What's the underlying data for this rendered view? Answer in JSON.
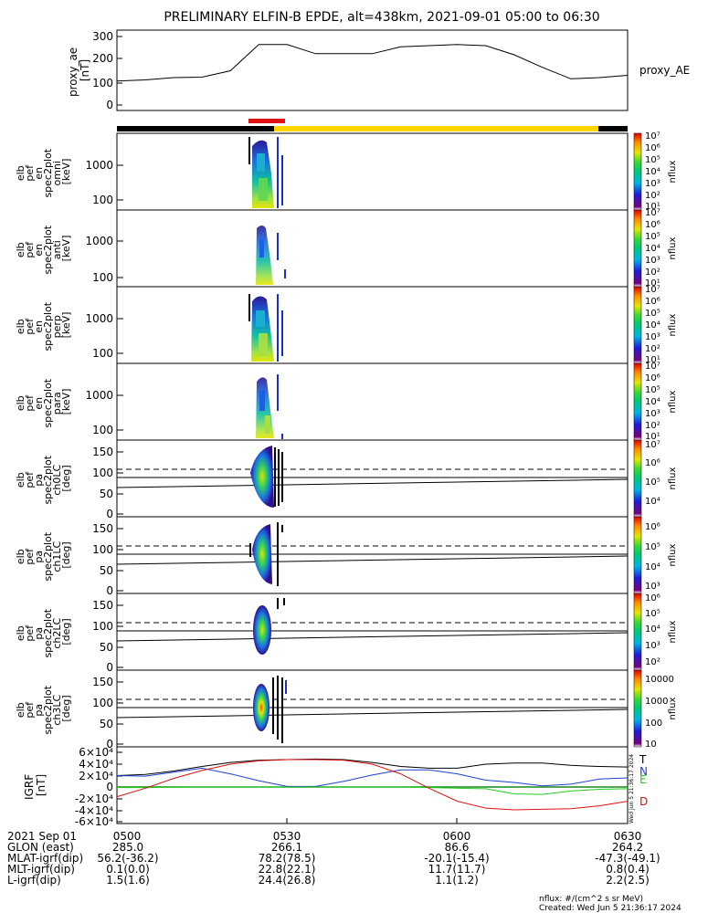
{
  "title": "PRELIMINARY ELFIN-B EPDE, alt=438km, 2021-09-01 05:00 to 06:30",
  "time_ticks": [
    "0500",
    "0530",
    "0600",
    "0630"
  ],
  "ae_panel": {
    "ylabel_lines": [
      "proxy_ae",
      "[nT]"
    ],
    "legend": "proxy_AE",
    "yticks": [
      "0",
      "100",
      "200",
      "300"
    ]
  },
  "spec_panels": [
    {
      "ylabel_lines": [
        "elb",
        "pef",
        "en",
        "spec2plot",
        "omni",
        "[keV]"
      ],
      "cbar_label": "nflux"
    },
    {
      "ylabel_lines": [
        "elb",
        "pef",
        "en",
        "spec2plot",
        "anti",
        "[keV]"
      ],
      "cbar_label": "nflux"
    },
    {
      "ylabel_lines": [
        "elb",
        "pef",
        "en",
        "spec2plot",
        "perp",
        "[keV]"
      ],
      "cbar_label": "nflux"
    },
    {
      "ylabel_lines": [
        "elb",
        "pef",
        "en",
        "spec2plot",
        "para",
        "[keV]"
      ],
      "cbar_label": "nflux"
    }
  ],
  "spec_yticks": [
    "100",
    "1000"
  ],
  "pa_panels": [
    {
      "ylabel_lines": [
        "elb",
        "pef",
        "pa",
        "spec2plot",
        "ch0LC",
        "[deg]"
      ],
      "cbar_label": "nflux"
    },
    {
      "ylabel_lines": [
        "elb",
        "pef",
        "pa",
        "spec2plot",
        "ch1LC",
        "[deg]"
      ],
      "cbar_label": "nflux"
    },
    {
      "ylabel_lines": [
        "elb",
        "pef",
        "pa",
        "spec2plot",
        "ch2LC",
        "[deg]"
      ],
      "cbar_label": "nflux"
    },
    {
      "ylabel_lines": [
        "elb",
        "pef",
        "pa",
        "spec2plot",
        "ch3LC",
        "[deg]"
      ],
      "cbar_label": "nflux"
    }
  ],
  "pa_yticks": [
    "0",
    "50",
    "100",
    "150"
  ],
  "cbar_ticks_spec": [
    "10¹",
    "10²",
    "10³",
    "10⁴",
    "10⁵",
    "10⁶",
    "10⁷"
  ],
  "cbar_ticks_pa0": [
    "10⁴",
    "10⁵",
    "10⁶",
    "10⁷"
  ],
  "cbar_ticks_pa1": [
    "10³",
    "10⁴",
    "10⁵",
    "10⁶"
  ],
  "cbar_ticks_pa2": [
    "10²",
    "10³",
    "10⁴",
    "10⁵",
    "10⁶"
  ],
  "cbar_ticks_pa3": [
    "10",
    "100",
    "1000",
    "10000"
  ],
  "bfield_panel": {
    "ylabel_lines": [
      "IGRF",
      "[nT]"
    ],
    "yticks": [
      "-6×10⁴",
      "-4×10⁴",
      "-2×10⁴",
      "0",
      "2×10⁴",
      "4×10⁴",
      "6×10⁴"
    ],
    "legend": [
      {
        "label": "T",
        "color": "#000000"
      },
      {
        "label": "N",
        "color": "#1f3fd8"
      },
      {
        "label": "E",
        "color": "#22cc22"
      },
      {
        "label": "D",
        "color": "#e01010"
      }
    ],
    "stamp": "Wed Jun  5 21:36:17 2024"
  },
  "footer": {
    "date": "2021 Sep 01",
    "rows": [
      {
        "label": "GLON (east)",
        "values": [
          "285.0",
          "266.1",
          "86.6",
          "264.2"
        ]
      },
      {
        "label": "MLAT-igrf(dip)",
        "values": [
          "56.2(-36.2)",
          "78.2(78.5)",
          "-20.1(-15.4)",
          "-47.3(-49.1)"
        ]
      },
      {
        "label": "MLT-igrf(dip)",
        "values": [
          "0.1(0.0)",
          "22.8(22.1)",
          "11.7(11.7)",
          "0.8(0.4)"
        ]
      },
      {
        "label": "L-igrf(dip)",
        "values": [
          "1.5(1.6)",
          "24.4(26.8)",
          "1.1(1.2)",
          "2.2(2.5)"
        ]
      }
    ],
    "units_note": "nflux: #/(cm^2 s sr MeV)",
    "created": "Created: Wed Jun  5 21:36:17 2024"
  },
  "colors": {
    "status_black": "#000000",
    "status_yellow": "#ffd400",
    "status_red": "#e01010"
  },
  "chart_data": [
    {
      "type": "line",
      "ylabel": "proxy_ae [nT]",
      "ylim": [
        0,
        320
      ],
      "x": [
        "0500",
        "0505",
        "0510",
        "0515",
        "0520",
        "0525",
        "0530",
        "0535",
        "0540",
        "0545",
        "0550",
        "0555",
        "0600",
        "0605",
        "0610",
        "0615",
        "0620",
        "0625",
        "0630"
      ],
      "series": [
        {
          "name": "proxy_AE",
          "values": [
            105,
            110,
            120,
            122,
            150,
            265,
            265,
            225,
            225,
            225,
            255,
            260,
            265,
            260,
            220,
            165,
            115,
            120,
            130
          ]
        }
      ]
    },
    {
      "type": "line",
      "ylabel": "IGRF [nT]",
      "ylim": [
        -60000,
        60000
      ],
      "x": [
        "0500",
        "0505",
        "0510",
        "0515",
        "0520",
        "0525",
        "0530",
        "0535",
        "0540",
        "0545",
        "0550",
        "0555",
        "0600",
        "0605",
        "0610",
        "0615",
        "0620",
        "0625",
        "0630"
      ],
      "series": [
        {
          "name": "T",
          "values": [
            20000,
            22000,
            28000,
            36000,
            43000,
            47000,
            48000,
            49000,
            48000,
            43000,
            36000,
            33000,
            33000,
            40000,
            42000,
            42000,
            38000,
            36000,
            35000
          ]
        },
        {
          "name": "N",
          "values": [
            20000,
            19000,
            26000,
            33000,
            23000,
            11000,
            1000,
            1000,
            10000,
            21000,
            30000,
            30000,
            23000,
            12000,
            8000,
            2000,
            5000,
            14000,
            16000
          ]
        },
        {
          "name": "E",
          "values": [
            -1000,
            -1000,
            -500,
            0,
            0,
            0,
            0,
            0,
            0,
            0,
            0,
            -1000,
            -2000,
            -3000,
            -12000,
            -13000,
            -7000,
            -4000,
            -3000
          ]
        },
        {
          "name": "D",
          "values": [
            -17000,
            -2000,
            15000,
            29000,
            40000,
            46000,
            48000,
            48000,
            47000,
            40000,
            23000,
            -2000,
            -25000,
            -37000,
            -40000,
            -39000,
            -38000,
            -33000,
            -25000
          ]
        }
      ]
    }
  ]
}
